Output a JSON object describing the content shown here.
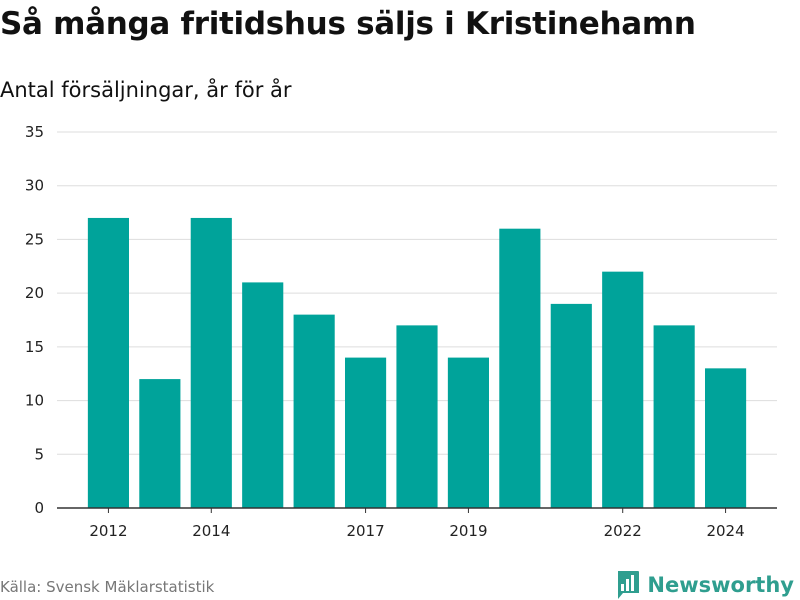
{
  "header": {
    "title": "Så många fritidshus säljs i Kristinehamn",
    "subtitle": "Antal försäljningar, år för år"
  },
  "footer": {
    "source": "Källa: Svensk Mäklarstatistik",
    "brand": "Newsworthy",
    "brand_icon": "bar-chart-badge-icon"
  },
  "colors": {
    "bar": "#00a39a",
    "brand": "#2f9e8f",
    "grid": "#dddddd",
    "axis": "#333333"
  },
  "chart_data": {
    "type": "bar",
    "categories": [
      "2012",
      "2013",
      "2014",
      "2015",
      "2016",
      "2017",
      "2018",
      "2019",
      "2020",
      "2021",
      "2022",
      "2023",
      "2024"
    ],
    "values": [
      27,
      12,
      27,
      21,
      18,
      14,
      17,
      14,
      26,
      19,
      22,
      17,
      13
    ],
    "x_tick_labels": [
      "2012",
      "2014",
      "2017",
      "2019",
      "2022",
      "2024"
    ],
    "y_ticks": [
      0,
      5,
      10,
      15,
      20,
      25,
      30,
      35
    ],
    "ylim": [
      0,
      35
    ],
    "title": "Så många fritidshus säljs i Kristinehamn",
    "subtitle": "Antal försäljningar, år för år",
    "xlabel": "",
    "ylabel": "",
    "grid": true,
    "legend": "none"
  }
}
